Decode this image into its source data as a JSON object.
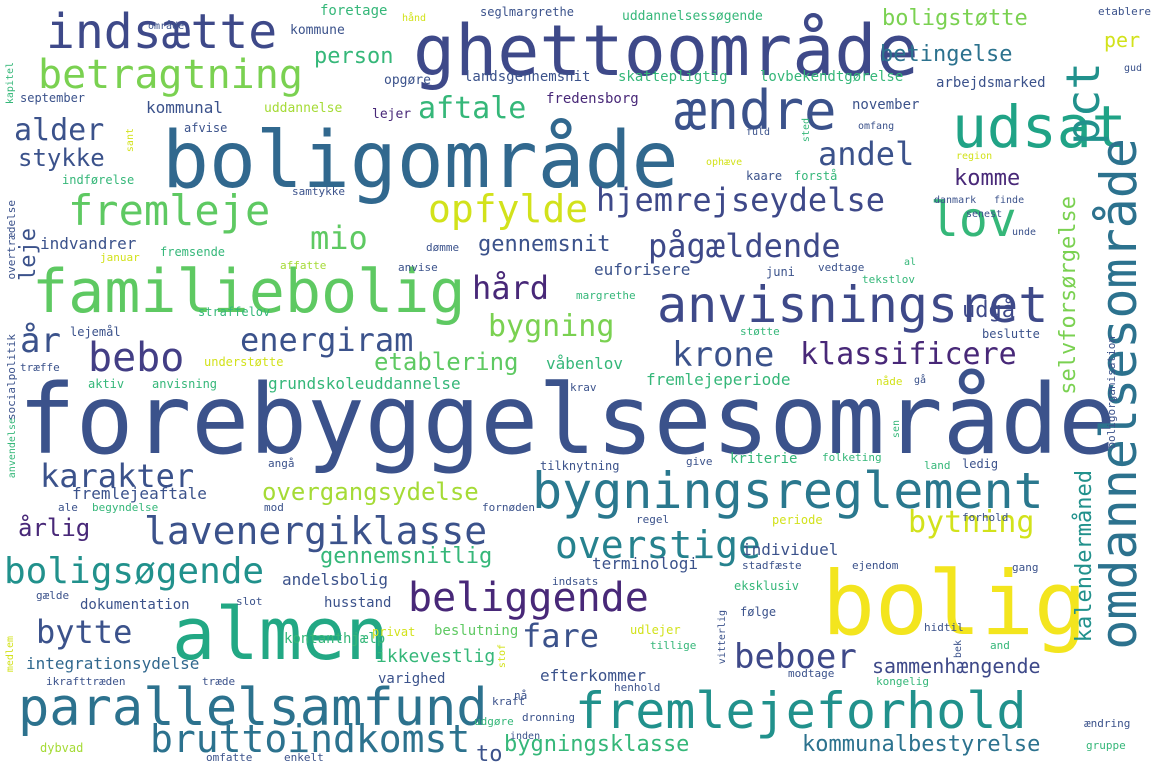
{
  "words": [
    {
      "t": "forebyggelsesområde",
      "c": "#3b528b"
    },
    {
      "t": "boligområde",
      "c": "#31688e"
    },
    {
      "t": "ghettoområde",
      "c": "#3e4989"
    },
    {
      "t": "bolig",
      "c": "#f3e51e"
    },
    {
      "t": "almen",
      "c": "#22a884"
    },
    {
      "t": "familiebolig",
      "c": "#5ec962"
    },
    {
      "t": "anvisningsret",
      "c": "#3e4989"
    },
    {
      "t": "bygningsreglement",
      "c": "#2a788e"
    },
    {
      "t": "fremlejeforhold",
      "c": "#21918c"
    },
    {
      "t": "parallelsamfund",
      "c": "#2c728e"
    },
    {
      "t": "udsat",
      "c": "#20a386"
    },
    {
      "t": "ændre",
      "c": "#3b528b"
    },
    {
      "t": "omdannelsesområde",
      "c": "#2c728e"
    },
    {
      "t": "indsætte",
      "c": "#3e4989"
    },
    {
      "t": "beliggende",
      "c": "#482878"
    },
    {
      "t": "lavenergiklasse",
      "c": "#3b528b"
    },
    {
      "t": "betragtning",
      "c": "#7ad151"
    },
    {
      "t": "fremleje",
      "c": "#5ec962"
    },
    {
      "t": "opfylde",
      "c": "#d2e21b"
    },
    {
      "t": "lov",
      "c": "#35b779"
    },
    {
      "t": "pct",
      "c": "#21918c"
    },
    {
      "t": "bebo",
      "c": "#433e85"
    },
    {
      "t": "hjemrejseydelse",
      "c": "#3e4989"
    },
    {
      "t": "overstige",
      "c": "#26828e"
    },
    {
      "t": "boligsøgende",
      "c": "#21918c"
    },
    {
      "t": "bruttoindkomst",
      "c": "#2c728e"
    },
    {
      "t": "krone",
      "c": "#3b528b"
    },
    {
      "t": "klassificere",
      "c": "#482878"
    },
    {
      "t": "energiram",
      "c": "#3b528b"
    },
    {
      "t": "pågældende",
      "c": "#3e4989"
    },
    {
      "t": "karakter",
      "c": "#3b528b"
    },
    {
      "t": "bytte",
      "c": "#3b528b"
    },
    {
      "t": "beboer",
      "c": "#3e4989"
    },
    {
      "t": "fare",
      "c": "#3b528b"
    },
    {
      "t": "bygningsklasse",
      "c": "#35b779"
    },
    {
      "t": "mio",
      "c": "#5ec962"
    },
    {
      "t": "hård",
      "c": "#482878"
    },
    {
      "t": "år",
      "c": "#3b528b"
    },
    {
      "t": "andel",
      "c": "#3b528b"
    },
    {
      "t": "alder",
      "c": "#3b528b"
    },
    {
      "t": "aftale",
      "c": "#35b779"
    },
    {
      "t": "bygning",
      "c": "#7ad151"
    },
    {
      "t": "bytning",
      "c": "#d2e21b"
    },
    {
      "t": "etablering",
      "c": "#5ec962"
    },
    {
      "t": "overgangsydelse",
      "c": "#a5db36"
    },
    {
      "t": "kommunalbestyrelse",
      "c": "#2c728e"
    },
    {
      "t": "boligstøtte",
      "c": "#7ad151"
    },
    {
      "t": "betingelse",
      "c": "#2c728e"
    },
    {
      "t": "kalendermåned",
      "c": "#21918c"
    },
    {
      "t": "selvforsørgelse",
      "c": "#7ad151"
    },
    {
      "t": "stykke",
      "c": "#3b528b"
    },
    {
      "t": "person",
      "c": "#35b779"
    },
    {
      "t": "gennemsnit",
      "c": "#3b528b"
    },
    {
      "t": "udgå",
      "c": "#3e4989"
    },
    {
      "t": "komme",
      "c": "#482878"
    },
    {
      "t": "leje",
      "c": "#3b528b"
    },
    {
      "t": "årlig",
      "c": "#482878"
    },
    {
      "t": "gennemsnitlig",
      "c": "#35b779"
    },
    {
      "t": "sammenhængende",
      "c": "#3e4989"
    },
    {
      "t": "ikkevestlig",
      "c": "#35b779"
    },
    {
      "t": "integrationsydelse",
      "c": "#31688e"
    },
    {
      "t": "to",
      "c": "#3b528b"
    },
    {
      "t": "per",
      "c": "#d2e21b"
    },
    {
      "t": "fremlejeperiode",
      "c": "#35b779"
    },
    {
      "t": "grundskoleuddannelse",
      "c": "#35b779"
    },
    {
      "t": "andelsbolig",
      "c": "#3b528b"
    },
    {
      "t": "fremlejeaftale",
      "c": "#3b528b"
    },
    {
      "t": "kommunal",
      "c": "#3b528b"
    },
    {
      "t": "indvandrer",
      "c": "#3b528b"
    },
    {
      "t": "euforisere",
      "c": "#3b528b"
    },
    {
      "t": "våbenlov",
      "c": "#35b779"
    },
    {
      "t": "efterkommer",
      "c": "#3b528b"
    },
    {
      "t": "terminologi",
      "c": "#3b528b"
    },
    {
      "t": "individuel",
      "c": "#3b528b"
    },
    {
      "t": "kriterie",
      "c": "#35b779"
    },
    {
      "t": "husstand",
      "c": "#3b528b"
    },
    {
      "t": "dokumentation",
      "c": "#3b528b"
    },
    {
      "t": "kontanthjælp",
      "c": "#35b779"
    },
    {
      "t": "beslutning",
      "c": "#5ec962"
    },
    {
      "t": "varighed",
      "c": "#3b528b"
    },
    {
      "t": "november",
      "c": "#3b528b"
    },
    {
      "t": "landsgennemsnit",
      "c": "#3b528b"
    },
    {
      "t": "skattepligtig",
      "c": "#35b779"
    },
    {
      "t": "lovbekendtgørelse",
      "c": "#35b779"
    },
    {
      "t": "arbejdsmarked",
      "c": "#3b528b"
    },
    {
      "t": "uddannelsessøgende",
      "c": "#35b779"
    },
    {
      "t": "seglmargrethe",
      "c": "#3b528b"
    },
    {
      "t": "foretage",
      "c": "#35b779"
    },
    {
      "t": "kommune",
      "c": "#3b528b"
    },
    {
      "t": "opgøre",
      "c": "#3b528b"
    },
    {
      "t": "uddannelse",
      "c": "#a5db36"
    },
    {
      "t": "fredensborg",
      "c": "#482878"
    },
    {
      "t": "lejer",
      "c": "#482878"
    },
    {
      "t": "afvise",
      "c": "#3b528b"
    },
    {
      "t": "kaare",
      "c": "#3b528b"
    },
    {
      "t": "forstå",
      "c": "#35b779"
    },
    {
      "t": "september",
      "c": "#3b528b"
    },
    {
      "t": "indførelse",
      "c": "#35b779"
    },
    {
      "t": "samtykke",
      "c": "#3b528b"
    },
    {
      "t": "fremsende",
      "c": "#35b779"
    },
    {
      "t": "dømme",
      "c": "#3b528b"
    },
    {
      "t": "anvise",
      "c": "#3b528b"
    },
    {
      "t": "januar",
      "c": "#d2e21b"
    },
    {
      "t": "affatte",
      "c": "#a5db36"
    },
    {
      "t": "juni",
      "c": "#3b528b"
    },
    {
      "t": "margrethe",
      "c": "#35b779"
    },
    {
      "t": "vedtage",
      "c": "#3b528b"
    },
    {
      "t": "tekstlov",
      "c": "#35b779"
    },
    {
      "t": "støtte",
      "c": "#35b779"
    },
    {
      "t": "beslutte",
      "c": "#3b528b"
    },
    {
      "t": "lejemål",
      "c": "#3b528b"
    },
    {
      "t": "straffelov",
      "c": "#35b779"
    },
    {
      "t": "understøtte",
      "c": "#d2e21b"
    },
    {
      "t": "aktiv",
      "c": "#35b779"
    },
    {
      "t": "anvisning",
      "c": "#35b779"
    },
    {
      "t": "træffe",
      "c": "#3b528b"
    },
    {
      "t": "krav",
      "c": "#3b528b"
    },
    {
      "t": "nåde",
      "c": "#d2e21b"
    },
    {
      "t": "tilknytning",
      "c": "#3b528b"
    },
    {
      "t": "give",
      "c": "#3b528b"
    },
    {
      "t": "folketing",
      "c": "#35b779"
    },
    {
      "t": "land",
      "c": "#35b779"
    },
    {
      "t": "ledig",
      "c": "#3b528b"
    },
    {
      "t": "angå",
      "c": "#3b528b"
    },
    {
      "t": "begyndelse",
      "c": "#35b779"
    },
    {
      "t": "mod",
      "c": "#3b528b"
    },
    {
      "t": "fornøden",
      "c": "#3b528b"
    },
    {
      "t": "ale",
      "c": "#3b528b"
    },
    {
      "t": "regel",
      "c": "#3b528b"
    },
    {
      "t": "periode",
      "c": "#d2e21b"
    },
    {
      "t": "forhold",
      "c": "#3b528b"
    },
    {
      "t": "stadfæste",
      "c": "#3b528b"
    },
    {
      "t": "ejendom",
      "c": "#3b528b"
    },
    {
      "t": "gang",
      "c": "#3b528b"
    },
    {
      "t": "eksklusiv",
      "c": "#35b779"
    },
    {
      "t": "indsats",
      "c": "#3b528b"
    },
    {
      "t": "følge",
      "c": "#3b528b"
    },
    {
      "t": "gælde",
      "c": "#3b528b"
    },
    {
      "t": "slot",
      "c": "#3b528b"
    },
    {
      "t": "privat",
      "c": "#d2e21b"
    },
    {
      "t": "udlejer",
      "c": "#d2e21b"
    },
    {
      "t": "tillige",
      "c": "#35b779"
    },
    {
      "t": "hidtil",
      "c": "#3b528b"
    },
    {
      "t": "and",
      "c": "#35b779"
    },
    {
      "t": "dronning",
      "c": "#3b528b"
    },
    {
      "t": "modtage",
      "c": "#3b528b"
    },
    {
      "t": "kongelig",
      "c": "#35b779"
    },
    {
      "t": "henhold",
      "c": "#3b528b"
    },
    {
      "t": "kraft",
      "c": "#3b528b"
    },
    {
      "t": "nå",
      "c": "#3b528b"
    },
    {
      "t": "udgøre",
      "c": "#35b779"
    },
    {
      "t": "inden",
      "c": "#3b528b"
    },
    {
      "t": "ikrafttræden",
      "c": "#3b528b"
    },
    {
      "t": "træde",
      "c": "#3b528b"
    },
    {
      "t": "dybvad",
      "c": "#a5db36"
    },
    {
      "t": "omfatte",
      "c": "#3b528b"
    },
    {
      "t": "enkelt",
      "c": "#3b528b"
    },
    {
      "t": "ændring",
      "c": "#3b528b"
    },
    {
      "t": "gruppe",
      "c": "#35b779"
    },
    {
      "t": "etablere",
      "c": "#3b528b"
    },
    {
      "t": "gud",
      "c": "#3b528b"
    },
    {
      "t": "område",
      "c": "#3b528b"
    },
    {
      "t": "hånd",
      "c": "#d2e21b"
    },
    {
      "t": "fuld",
      "c": "#3b528b"
    },
    {
      "t": "omfang",
      "c": "#3b528b"
    },
    {
      "t": "region",
      "c": "#d2e21b"
    },
    {
      "t": "ophæve",
      "c": "#d2e21b"
    },
    {
      "t": "danmark",
      "c": "#3b528b"
    },
    {
      "t": "finde",
      "c": "#3b528b"
    },
    {
      "t": "senest",
      "c": "#3b528b"
    },
    {
      "t": "unde",
      "c": "#3b528b"
    },
    {
      "t": "al",
      "c": "#35b779"
    },
    {
      "t": "gå",
      "c": "#3b528b"
    },
    {
      "t": "sen",
      "c": "#35b779"
    },
    {
      "t": "kapitel",
      "c": "#35b779"
    },
    {
      "t": "sant",
      "c": "#d2e21b"
    },
    {
      "t": "sted",
      "c": "#35b779"
    },
    {
      "t": "overtrædelse",
      "c": "#3b528b"
    },
    {
      "t": "socialpolitik",
      "c": "#3b528b"
    },
    {
      "t": "anvendelse",
      "c": "#35b779"
    },
    {
      "t": "boligorganisation",
      "c": "#3b528b"
    },
    {
      "t": "vitterlig",
      "c": "#3b528b"
    },
    {
      "t": "bek",
      "c": "#3b528b"
    },
    {
      "t": "stof",
      "c": "#d2e21b"
    },
    {
      "t": "medlem",
      "c": "#d2e21b"
    }
  ]
}
